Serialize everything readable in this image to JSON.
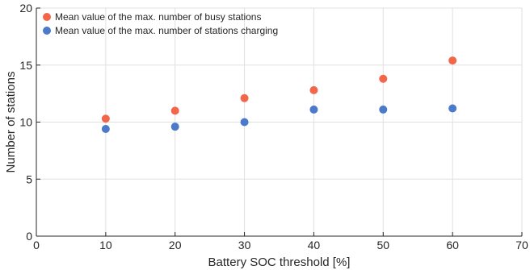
{
  "chart_data": {
    "type": "scatter",
    "xlabel": "Battery SOC threshold [%]",
    "ylabel": "Number of stations",
    "xlim": [
      0,
      70
    ],
    "ylim": [
      0,
      20
    ],
    "xticks": [
      0,
      10,
      20,
      30,
      40,
      50,
      60,
      70
    ],
    "yticks": [
      0,
      5,
      10,
      15,
      20
    ],
    "grid": true,
    "legend_position": "top-left",
    "series": [
      {
        "name": "Mean value of the max. number of busy stations",
        "color": "#f2664a",
        "x": [
          10,
          20,
          30,
          40,
          50,
          60
        ],
        "y": [
          10.3,
          11.0,
          12.1,
          12.8,
          13.8,
          15.4
        ]
      },
      {
        "name": "Mean value of the max. number of stations charging",
        "color": "#4a7ac9",
        "x": [
          10,
          20,
          30,
          40,
          50,
          60
        ],
        "y": [
          9.4,
          9.6,
          10.0,
          11.1,
          11.1,
          11.2
        ]
      }
    ]
  }
}
